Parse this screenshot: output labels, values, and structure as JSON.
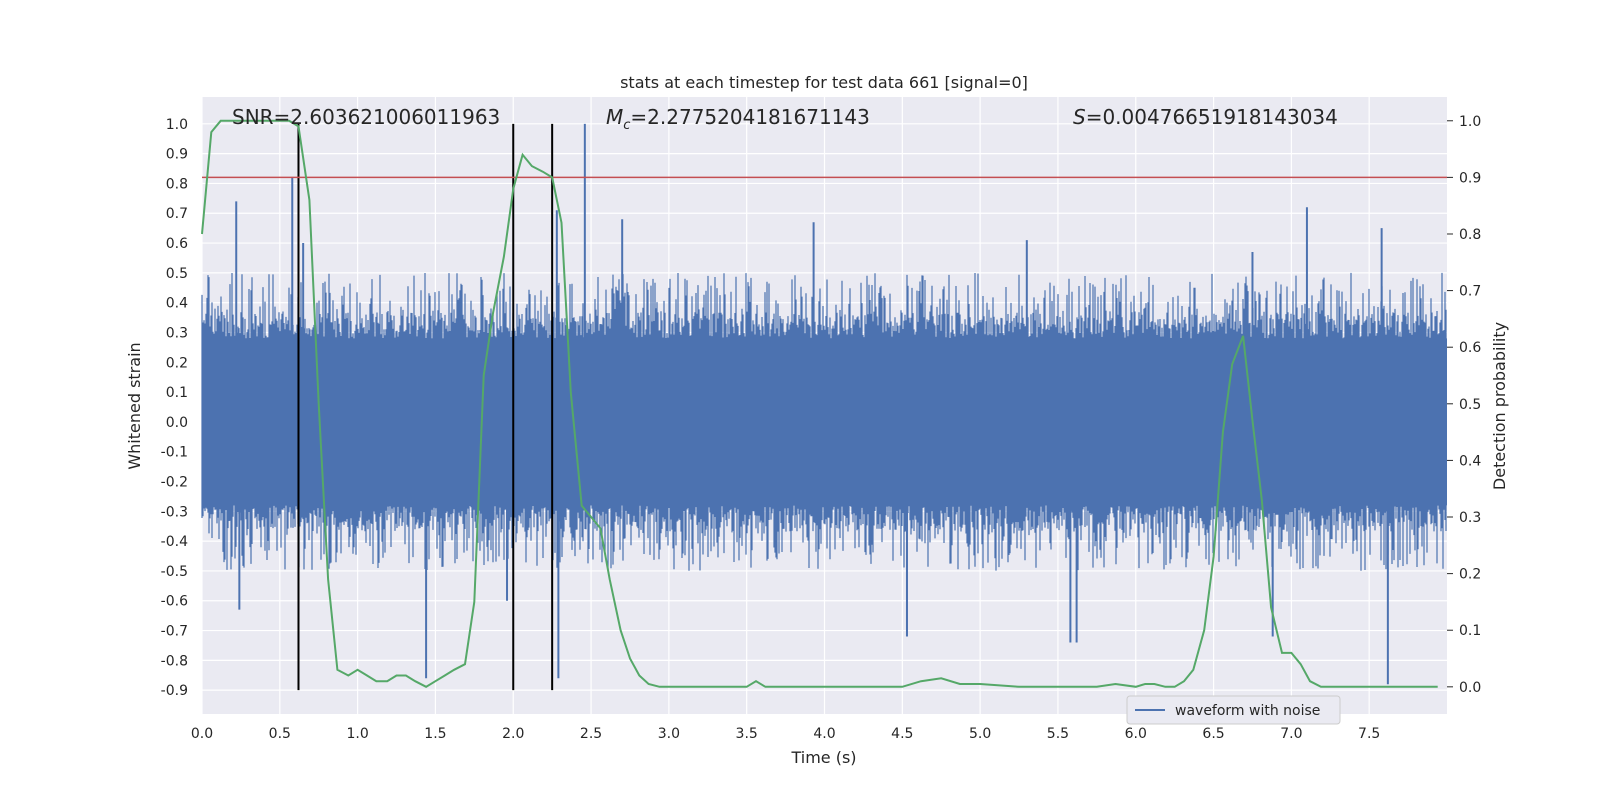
{
  "chart_data": {
    "type": "line",
    "title": "stats at each timestep for test data 661 [signal=0]",
    "xlabel": "Time (s)",
    "ylabel": "Whitened strain",
    "ylabel_right": "Detection probability",
    "xlim": [
      0.0,
      8.0
    ],
    "ylim": [
      -0.98,
      1.09
    ],
    "ylim_right": [
      -0.048,
      1.042
    ],
    "x_ticks": [
      "0.0",
      "0.5",
      "1.0",
      "1.5",
      "2.0",
      "2.5",
      "3.0",
      "3.5",
      "4.0",
      "4.5",
      "5.0",
      "5.5",
      "6.0",
      "6.5",
      "7.0",
      "7.5"
    ],
    "y_ticks": [
      "1.0",
      "0.9",
      "0.8",
      "0.7",
      "0.6",
      "0.5",
      "0.4",
      "0.3",
      "0.2",
      "0.1",
      "0.0",
      "-0.1",
      "-0.2",
      "-0.3",
      "-0.4",
      "-0.5",
      "-0.6",
      "-0.7",
      "-0.8",
      "-0.9"
    ],
    "y_right_ticks": [
      "1.0",
      "0.9",
      "0.8",
      "0.7",
      "0.6",
      "0.5",
      "0.4",
      "0.3",
      "0.2",
      "0.1",
      "0.0"
    ],
    "grid": true,
    "legend": {
      "location": "lower-right",
      "entries": [
        "waveform with noise"
      ]
    },
    "stats": {
      "snr_label": "SNR=2.603621006011963",
      "mc_symbol": "M",
      "mc_sub": "c",
      "mc_value": "=2.2775204181671143",
      "s_symbol": "S",
      "s_value": "=0.00476651918143034"
    },
    "threshold": {
      "value": 0.9,
      "axis": "right",
      "color": "#c44e52"
    },
    "event_markers": {
      "x": [
        0.62,
        2.0,
        2.25
      ],
      "y_range": [
        -0.9,
        1.0
      ],
      "color": "#000000"
    },
    "series": [
      {
        "name": "waveform with noise",
        "axis": "left",
        "color": "#4c72b0",
        "kind": "dense-noise",
        "sample_rate_hz": 2048,
        "core_amplitude": 0.28,
        "typical_peak_max": 0.5,
        "peaks": [
          {
            "x": 0.22,
            "y": 0.74
          },
          {
            "x": 0.58,
            "y": 0.82
          },
          {
            "x": 0.65,
            "y": 0.6
          },
          {
            "x": 1.44,
            "y": -0.86
          },
          {
            "x": 2.46,
            "y": 1.0
          },
          {
            "x": 2.28,
            "y": 0.71
          },
          {
            "x": 2.29,
            "y": -0.86
          },
          {
            "x": 2.7,
            "y": 0.68
          },
          {
            "x": 3.93,
            "y": 0.67
          },
          {
            "x": 4.53,
            "y": -0.72
          },
          {
            "x": 5.3,
            "y": 0.61
          },
          {
            "x": 5.58,
            "y": -0.74
          },
          {
            "x": 5.62,
            "y": -0.74
          },
          {
            "x": 6.88,
            "y": -0.72
          },
          {
            "x": 7.1,
            "y": 0.72
          },
          {
            "x": 7.62,
            "y": -0.88
          },
          {
            "x": 7.58,
            "y": 0.65
          },
          {
            "x": 0.24,
            "y": -0.63
          },
          {
            "x": 1.96,
            "y": -0.6
          },
          {
            "x": 6.75,
            "y": 0.57
          }
        ]
      },
      {
        "name": "detection probability",
        "axis": "right",
        "color": "#55a868",
        "x": [
          0.0,
          0.06,
          0.12,
          0.19,
          0.25,
          0.31,
          0.37,
          0.44,
          0.5,
          0.56,
          0.62,
          0.69,
          0.75,
          0.81,
          0.87,
          0.94,
          1.0,
          1.06,
          1.12,
          1.19,
          1.25,
          1.31,
          1.37,
          1.44,
          1.5,
          1.56,
          1.62,
          1.69,
          1.75,
          1.81,
          1.87,
          1.94,
          2.0,
          2.06,
          2.12,
          2.19,
          2.25,
          2.31,
          2.37,
          2.44,
          2.5,
          2.56,
          2.62,
          2.69,
          2.75,
          2.81,
          2.87,
          2.94,
          3.0,
          3.25,
          3.5,
          3.56,
          3.62,
          3.75,
          4.0,
          4.25,
          4.5,
          4.62,
          4.75,
          4.87,
          5.0,
          5.25,
          5.5,
          5.75,
          5.87,
          6.0,
          6.06,
          6.12,
          6.19,
          6.25,
          6.31,
          6.37,
          6.44,
          6.5,
          6.56,
          6.62,
          6.69,
          6.75,
          6.81,
          6.87,
          6.94,
          7.0,
          7.06,
          7.12,
          7.19,
          7.25,
          7.5,
          7.75,
          7.94
        ],
        "values": [
          0.8,
          0.98,
          1.0,
          1.0,
          1.0,
          1.0,
          1.0,
          1.0,
          1.0,
          1.0,
          0.99,
          0.86,
          0.5,
          0.19,
          0.03,
          0.02,
          0.03,
          0.02,
          0.01,
          0.01,
          0.02,
          0.02,
          0.01,
          0.0,
          0.01,
          0.02,
          0.03,
          0.04,
          0.15,
          0.55,
          0.66,
          0.76,
          0.88,
          0.94,
          0.92,
          0.91,
          0.9,
          0.82,
          0.52,
          0.32,
          0.3,
          0.28,
          0.19,
          0.1,
          0.05,
          0.02,
          0.005,
          0.0,
          0.0,
          0.0,
          0.0,
          0.01,
          0.0,
          0.0,
          0.0,
          0.0,
          0.0,
          0.01,
          0.015,
          0.005,
          0.005,
          0.0,
          0.0,
          0.0,
          0.005,
          0.0,
          0.005,
          0.005,
          0.0,
          0.0,
          0.01,
          0.03,
          0.1,
          0.23,
          0.45,
          0.57,
          0.62,
          0.47,
          0.33,
          0.14,
          0.06,
          0.06,
          0.04,
          0.01,
          0.0,
          0.0,
          0.0,
          0.0,
          0.0
        ]
      }
    ]
  }
}
